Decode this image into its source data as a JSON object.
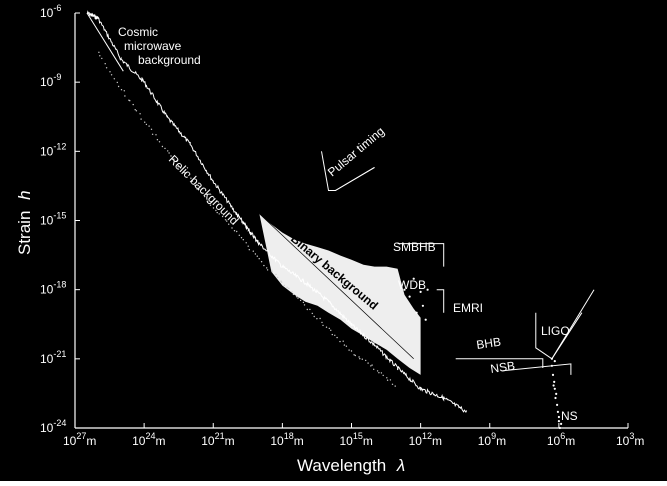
{
  "chart_data": {
    "type": "line",
    "title": "",
    "xlabel": "Wavelength",
    "xlabel_symbol": "λ",
    "ylabel": "Strain",
    "ylabel_symbol": "h",
    "x_scale": "log",
    "y_scale": "log",
    "x_axis_direction": "decreasing to the right",
    "xlim": [
      "1e27",
      "1e3"
    ],
    "ylim": [
      "1e-24",
      "1e-6"
    ],
    "x_ticks": [
      {
        "base": "10",
        "exp": "27",
        "unit": "m",
        "value_m": 1e+27
      },
      {
        "base": "10",
        "exp": "24",
        "unit": "m",
        "value_m": 1e+24
      },
      {
        "base": "10",
        "exp": "21",
        "unit": "m",
        "value_m": 1e+21
      },
      {
        "base": "10",
        "exp": "18",
        "unit": "m",
        "value_m": 1e+18
      },
      {
        "base": "10",
        "exp": "15",
        "unit": "m",
        "value_m": 1000000000000000.0
      },
      {
        "base": "10",
        "exp": "12",
        "unit": "m",
        "value_m": 1000000000000.0
      },
      {
        "base": "10",
        "exp": "9",
        "unit": "m",
        "value_m": 1000000000.0
      },
      {
        "base": "10",
        "exp": "6",
        "unit": "m",
        "value_m": 1000000.0
      },
      {
        "base": "10",
        "exp": "3",
        "unit": "m",
        "value_m": 1000.0
      }
    ],
    "y_ticks": [
      {
        "base": "10",
        "exp": "-6",
        "value": 1e-06
      },
      {
        "base": "10",
        "exp": "-9",
        "value": 1e-09
      },
      {
        "base": "10",
        "exp": "-12",
        "value": 1e-12
      },
      {
        "base": "10",
        "exp": "-15",
        "value": 1e-15
      },
      {
        "base": "10",
        "exp": "-18",
        "value": 1e-18
      },
      {
        "base": "10",
        "exp": "-21",
        "value": 1e-21
      },
      {
        "base": "10",
        "exp": "-24",
        "value": 1e-24
      }
    ],
    "grid": false,
    "colors": {
      "background": "#000000",
      "foreground": "#ffffff",
      "band_fill": "#eeeeee",
      "band_text": "#000000"
    },
    "series": [
      {
        "kind": "noisy-line",
        "x_m": [
          3e+26,
          1e+26,
          1e+25,
          1e+24,
          1e+23,
          1e+22,
          1e+21,
          1e+20,
          3e+19,
          1e+19,
          1e+18,
          1e+17,
          1e+16,
          1000000000000000.0,
          100000000000000.0,
          10000000000000.0,
          1000000000000.0,
          100000000000.0,
          10000000000.0
        ],
        "y": [
          1e-06,
          6e-07,
          1e-08,
          1e-09,
          3e-11,
          2e-12,
          5e-14,
          2e-15,
          4e-16,
          1e-16,
          1e-17,
          2e-18,
          3e-19,
          3e-20,
          4e-21,
          4e-22,
          5e-23,
          2e-23,
          5e-24
        ]
      },
      {
        "kind": "dotted",
        "x_m": [
          1e+26,
          1e+25,
          1e+24,
          1e+23,
          1e+22,
          1e+21,
          1e+20,
          1e+19,
          1e+18,
          1e+17,
          1e+16,
          1000000000000000.0,
          100000000000000.0,
          10000000000000.0
        ],
        "y": [
          2e-08,
          5e-10,
          2e-11,
          1e-12,
          6e-14,
          4e-15,
          3e-16,
          2e-17,
          2e-18,
          2e-19,
          2e-20,
          2e-21,
          4e-22,
          6e-23
        ]
      },
      {
        "kind": "band",
        "upper": {
          "x_m": [
            1e+19,
            5e+18,
            1e+18,
            3e+17,
            1e+17,
            3e+16,
            1e+16,
            3000000000000000.0,
            1000000000000000.0,
            300000000000000.0,
            100000000000000.0,
            30000000000000.0,
            10000000000000.0,
            5000000000000.0,
            2000000000000.0,
            1000000000000.0
          ],
          "y": [
            2e-15,
            1e-15,
            3e-16,
            1.5e-16,
            1e-16,
            7e-17,
            5e-17,
            3e-17,
            2e-17,
            1.2e-17,
            1e-17,
            1e-17,
            8e-18,
            6e-19,
            1.5e-19,
            6e-20
          ]
        },
        "lower": {
          "x_m": [
            1000000000000.0,
            3000000000000.0,
            10000000000000.0,
            30000000000000.0,
            100000000000000.0,
            300000000000000.0,
            1000000000000000.0,
            3000000000000000.0,
            1e+16,
            3e+16,
            1e+17,
            3e+17,
            1e+18,
            3e+18,
            1e+19
          ],
          "y": [
            2e-22,
            4e-22,
            1e-21,
            2.5e-21,
            5e-21,
            1e-20,
            2e-20,
            5e-20,
            1e-19,
            2e-19,
            3e-19,
            6e-19,
            1.5e-18,
            6e-18,
            2e-15
          ]
        }
      },
      {
        "kind": "curve",
        "points": [
          {
            "x_m": 2e+16,
            "y": 1e-12
          },
          {
            "x_m": 1e+16,
            "y": 2e-14
          },
          {
            "x_m": 5000000000000000.0,
            "y": 2e-14
          },
          {
            "x_m": 100000000000000.0,
            "y": 2e-13
          }
        ]
      },
      {
        "kind": "curve",
        "points": [
          {
            "x_m": 10000000000000.0,
            "y": 1e-16
          },
          {
            "x_m": 100000000000.0,
            "y": 1e-16
          },
          {
            "x_m": 100000000000.0,
            "y": 1e-17
          }
        ]
      },
      {
        "kind": "curve",
        "points": [
          {
            "x_m": 200000000000.0,
            "y": 1e-18
          },
          {
            "x_m": 100000000000.0,
            "y": 1e-18
          },
          {
            "x_m": 100000000000.0,
            "y": 1e-19
          }
        ]
      },
      {
        "kind": "curve",
        "points": [
          {
            "x_m": 30000000000.0,
            "y": 1e-21
          },
          {
            "x_m": 5000000.0,
            "y": 1e-21
          },
          {
            "x_m": 5000000.0,
            "y": 4e-22
          }
        ]
      },
      {
        "kind": "curve",
        "points": [
          {
            "x_m": 300000000.0,
            "y": 3e-22
          },
          {
            "x_m": 300000.0,
            "y": 6e-22
          },
          {
            "x_m": 300000.0,
            "y": 2e-22
          }
        ]
      },
      {
        "kind": "curve",
        "points": [
          {
            "x_m": 10000000.0,
            "y": 1e-19
          },
          {
            "x_m": 10000000.0,
            "y": 3e-21
          },
          {
            "x_m": 2000000.0,
            "y": 1e-21
          },
          {
            "x_m": 100000.0,
            "y": 1e-19
          }
        ]
      },
      {
        "kind": "scatter",
        "x_m": [
          2000000.0,
          1800000.0,
          1600000.0,
          1500000.0,
          1400000.0,
          1200000.0,
          1100000.0,
          1000000.0,
          900000.0,
          800000.0,
          1500000.0,
          1300000.0,
          1000000.0,
          2000000.0,
          1700000.0
        ],
        "y": [
          5e-22,
          2e-22,
          1e-22,
          5e-23,
          2e-23,
          1e-23,
          5e-24,
          2e-24,
          1e-24,
          1.5e-24,
          8e-22,
          3e-23,
          3e-24,
          1e-21,
          7e-23
        ]
      },
      {
        "kind": "scatter",
        "x_m": [
          5000000000000.0,
          3000000000000.0,
          2000000000000.0,
          1500000000000.0,
          1000000000000.0,
          800000000000.0,
          600000000000.0,
          500000000000.0
        ],
        "y": [
          1e-18,
          5e-19,
          3e-18,
          1e-19,
          8e-19,
          2e-19,
          5e-20,
          1e-18
        ]
      }
    ],
    "annotations": [
      {
        "id": "cmb_1",
        "text": "Cosmic"
      },
      {
        "id": "cmb_2",
        "text": "microwave"
      },
      {
        "id": "cmb_3",
        "text": "background"
      },
      {
        "id": "relic",
        "text": "Relic background"
      },
      {
        "id": "pulsar",
        "text": "Pulsar timing"
      },
      {
        "id": "binary",
        "text": "Binary background"
      },
      {
        "id": "smbhb",
        "text": "SMBHB"
      },
      {
        "id": "wdb",
        "text": "WDB"
      },
      {
        "id": "emri",
        "text": "EMRI"
      },
      {
        "id": "bhb",
        "text": "BHB"
      },
      {
        "id": "nsb",
        "text": "NSB"
      },
      {
        "id": "ligo",
        "text": "LIGO"
      },
      {
        "id": "ns",
        "text": "NS"
      }
    ]
  }
}
